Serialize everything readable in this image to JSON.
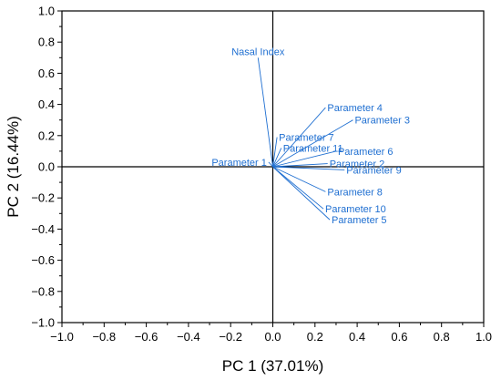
{
  "chart_data": {
    "type": "scatter",
    "title": "",
    "xlabel": "PC 1 (37.01%)",
    "ylabel": "PC 2 (16.44%)",
    "xlim": [
      -1.0,
      1.0
    ],
    "ylim": [
      -1.0,
      1.0
    ],
    "xticks": [
      "−1.0",
      "−0.8",
      "−0.6",
      "−0.4",
      "−0.2",
      "0.0",
      "0.2",
      "0.4",
      "0.6",
      "0.8",
      "1.0"
    ],
    "yticks": [
      "−1.0",
      "−0.8",
      "−0.6",
      "−0.4",
      "−0.2",
      "0.0",
      "0.2",
      "0.4",
      "0.6",
      "0.8",
      "1.0"
    ],
    "grid": false,
    "legend": false,
    "vector_color": "#1f6fd1",
    "axis_color": "#000000",
    "vectors": [
      {
        "name": "Nasal Index",
        "x": -0.07,
        "y": 0.7
      },
      {
        "name": "Parameter 4",
        "x": 0.25,
        "y": 0.38
      },
      {
        "name": "Parameter 3",
        "x": 0.38,
        "y": 0.3
      },
      {
        "name": "Parameter 7",
        "x": 0.02,
        "y": 0.19
      },
      {
        "name": "Parameter 11",
        "x": 0.04,
        "y": 0.12
      },
      {
        "name": "Parameter 6",
        "x": 0.3,
        "y": 0.1
      },
      {
        "name": "Parameter 1",
        "x": -0.02,
        "y": 0.03
      },
      {
        "name": "Parameter 2",
        "x": 0.26,
        "y": 0.02
      },
      {
        "name": "Parameter 9",
        "x": 0.34,
        "y": -0.02
      },
      {
        "name": "Parameter 8",
        "x": 0.25,
        "y": -0.16
      },
      {
        "name": "Parameter 10",
        "x": 0.24,
        "y": -0.27
      },
      {
        "name": "Parameter 5",
        "x": 0.27,
        "y": -0.34
      }
    ]
  }
}
